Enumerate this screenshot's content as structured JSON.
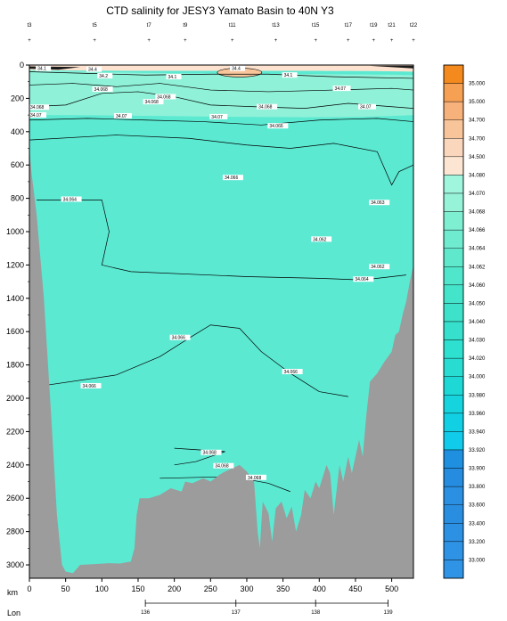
{
  "chart_data": {
    "type": "heatmap",
    "title": "CTD salinity for JESY3 Yamato Basin to 40N Y3",
    "xlabel": "km",
    "x2label": "Lon",
    "x_ticks": [
      0,
      50,
      100,
      150,
      200,
      250,
      300,
      350,
      400,
      450,
      500
    ],
    "x_range": [
      0,
      530
    ],
    "y_ticks": [
      0,
      200,
      400,
      600,
      800,
      1000,
      1200,
      1400,
      1600,
      1800,
      2000,
      2200,
      2400,
      2600,
      2800,
      3000
    ],
    "y_range": [
      0,
      3080
    ],
    "lon_ticks": [
      136,
      137,
      138,
      139
    ],
    "lon_km": [
      160,
      285,
      395,
      495
    ],
    "station_labels": [
      "t3",
      "t5",
      "t7",
      "t9",
      "t11",
      "t13",
      "t15",
      "t17",
      "t19",
      "t21",
      "t22"
    ],
    "station_km": [
      0,
      90,
      165,
      215,
      280,
      340,
      395,
      440,
      475,
      500,
      530
    ],
    "colorbar": {
      "levels": [
        "35.000",
        "35.000",
        "34.700",
        "34.700",
        "34.500",
        "34.080",
        "34.070",
        "34.068",
        "34.066",
        "34.064",
        "34.062",
        "34.060",
        "34.050",
        "34.040",
        "34.030",
        "34.020",
        "34.000",
        "33.980",
        "33.960",
        "33.940",
        "33.920",
        "33.900",
        "33.800",
        "33.600",
        "33.400",
        "33.200",
        "33.000"
      ],
      "level_labels": [
        "35.000",
        "35.000",
        "34.700",
        "34.700",
        "34.500",
        "34.080",
        "34.070",
        "34.068",
        "34.066",
        "34.064",
        "34.062",
        "34.060",
        "34.050",
        "34.040",
        "34.030",
        "34.020",
        "34.000",
        "33.980",
        "33.960",
        "33.940",
        "33.920",
        "33.900",
        "33.800",
        "33.600",
        "33.400",
        "33.200",
        "33.000"
      ],
      "swatch_colors": [
        "#f48a1e",
        "#f6a054",
        "#f7b17a",
        "#f8c59b",
        "#fad7bc",
        "#fde5d3",
        "#a0f5dd",
        "#96f3d8",
        "#7fefd2",
        "#6febcf",
        "#5fe8cc",
        "#50e6cb",
        "#44e4ca",
        "#3ee2ca",
        "#36e0cc",
        "#2ee0cf",
        "#28dcd2",
        "#1ed8d6",
        "#16d4de",
        "#12d0e4",
        "#10cbea",
        "#1f8fe0",
        "#258cdf",
        "#2b90e2",
        "#2a8ee0",
        "#2c90e3",
        "#2e92e5",
        "#3094e6"
      ]
    },
    "contour_labels": [
      {
        "text": "34.1",
        "x": 10,
        "y": 25
      },
      {
        "text": "34.4",
        "x": 80,
        "y": 30
      },
      {
        "text": "34.2",
        "x": 95,
        "y": 70
      },
      {
        "text": "34.1",
        "x": 190,
        "y": 75
      },
      {
        "text": "34.4",
        "x": 278,
        "y": 25
      },
      {
        "text": "34.1",
        "x": 350,
        "y": 65
      },
      {
        "text": "34.068",
        "x": 88,
        "y": 150
      },
      {
        "text": "34.068",
        "x": 175,
        "y": 195
      },
      {
        "text": "34.068",
        "x": 158,
        "y": 225
      },
      {
        "text": "34.068",
        "x": 0,
        "y": 258
      },
      {
        "text": "34.07",
        "x": 0,
        "y": 305
      },
      {
        "text": "34.07",
        "x": 118,
        "y": 310
      },
      {
        "text": "34.07",
        "x": 250,
        "y": 315
      },
      {
        "text": "34.068",
        "x": 315,
        "y": 255
      },
      {
        "text": "34.066",
        "x": 330,
        "y": 370
      },
      {
        "text": "34.07",
        "x": 420,
        "y": 145
      },
      {
        "text": "34.07",
        "x": 455,
        "y": 255
      },
      {
        "text": "34.066",
        "x": 268,
        "y": 680
      },
      {
        "text": "34.064",
        "x": 45,
        "y": 810
      },
      {
        "text": "34.063",
        "x": 470,
        "y": 830
      },
      {
        "text": "34.062",
        "x": 390,
        "y": 1050
      },
      {
        "text": "34.062",
        "x": 470,
        "y": 1215
      },
      {
        "text": "34.064",
        "x": 448,
        "y": 1290
      },
      {
        "text": "34.066",
        "x": 195,
        "y": 1640
      },
      {
        "text": "34.066",
        "x": 350,
        "y": 1845
      },
      {
        "text": "34.066",
        "x": 72,
        "y": 1930
      },
      {
        "text": "34.068",
        "x": 238,
        "y": 2330
      },
      {
        "text": "34.068",
        "x": 255,
        "y": 2410
      },
      {
        "text": "34.068",
        "x": 300,
        "y": 2480
      }
    ],
    "bottom_depth": [
      [
        0,
        500
      ],
      [
        3,
        650
      ],
      [
        10,
        900
      ],
      [
        20,
        1400
      ],
      [
        30,
        2100
      ],
      [
        38,
        2700
      ],
      [
        45,
        3000
      ],
      [
        50,
        3040
      ],
      [
        60,
        3050
      ],
      [
        70,
        3000
      ],
      [
        90,
        2995
      ],
      [
        110,
        2990
      ],
      [
        125,
        2992
      ],
      [
        140,
        2980
      ],
      [
        145,
        2900
      ],
      [
        148,
        2700
      ],
      [
        152,
        2600
      ],
      [
        165,
        2600
      ],
      [
        180,
        2580
      ],
      [
        195,
        2540
      ],
      [
        210,
        2560
      ],
      [
        215,
        2500
      ],
      [
        225,
        2510
      ],
      [
        240,
        2480
      ],
      [
        250,
        2500
      ],
      [
        262,
        2460
      ],
      [
        270,
        2440
      ],
      [
        280,
        2420
      ],
      [
        290,
        2400
      ],
      [
        300,
        2440
      ],
      [
        310,
        2500
      ],
      [
        315,
        2800
      ],
      [
        318,
        2900
      ],
      [
        322,
        2620
      ],
      [
        330,
        2690
      ],
      [
        335,
        2860
      ],
      [
        340,
        2660
      ],
      [
        348,
        2620
      ],
      [
        355,
        2720
      ],
      [
        362,
        2650
      ],
      [
        368,
        2800
      ],
      [
        375,
        2700
      ],
      [
        380,
        2550
      ],
      [
        388,
        2600
      ],
      [
        395,
        2500
      ],
      [
        400,
        2540
      ],
      [
        410,
        2400
      ],
      [
        415,
        2450
      ],
      [
        420,
        2700
      ],
      [
        428,
        2400
      ],
      [
        433,
        2500
      ],
      [
        440,
        2350
      ],
      [
        445,
        2450
      ],
      [
        455,
        2250
      ],
      [
        460,
        2350
      ],
      [
        465,
        2100
      ],
      [
        470,
        1900
      ],
      [
        480,
        1850
      ],
      [
        490,
        1780
      ],
      [
        500,
        1720
      ],
      [
        505,
        1620
      ],
      [
        510,
        1600
      ],
      [
        515,
        1500
      ],
      [
        520,
        1420
      ],
      [
        525,
        1300
      ],
      [
        530,
        1200
      ]
    ]
  }
}
